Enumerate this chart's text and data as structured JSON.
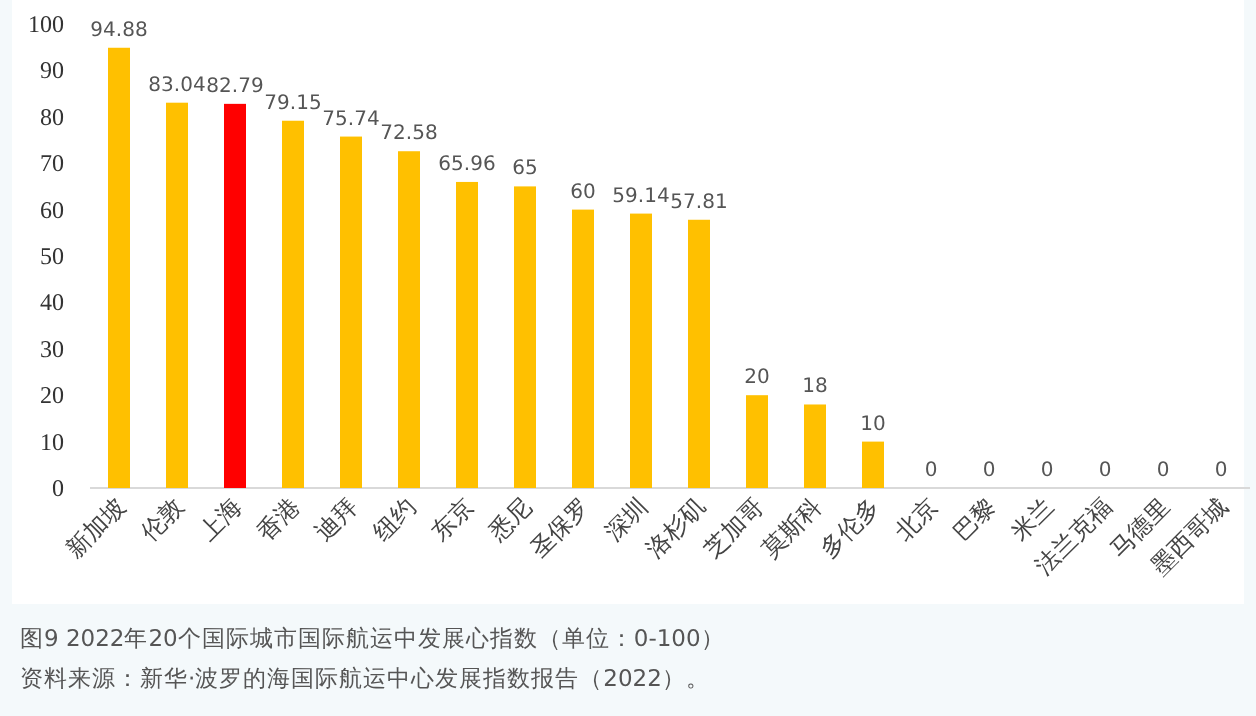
{
  "chart_data": {
    "type": "bar",
    "title": "图9  2022年20个国际城市国际航运中发展心指数（单位：0-100）",
    "annotations": [
      "资料来源：新华·波罗的海国际航运中心发展指数报告（2022）。"
    ],
    "categories": [
      "新加坡",
      "伦敦",
      "上海",
      "香港",
      "迪拜",
      "纽约",
      "东京",
      "悉尼",
      "圣保罗",
      "深圳",
      "洛杉矶",
      "芝加哥",
      "莫斯科",
      "多伦多",
      "北京",
      "巴黎",
      "米兰",
      "法兰克福",
      "马德里",
      "墨西哥城"
    ],
    "values": [
      94.88,
      83.04,
      82.79,
      79.15,
      75.74,
      72.58,
      65.96,
      65,
      60,
      59.14,
      57.81,
      20,
      18,
      10,
      0,
      0,
      0,
      0,
      0,
      0
    ],
    "colors": [
      "#ffc000",
      "#ffc000",
      "#ff0000",
      "#ffc000",
      "#ffc000",
      "#ffc000",
      "#ffc000",
      "#ffc000",
      "#ffc000",
      "#ffc000",
      "#ffc000",
      "#ffc000",
      "#ffc000",
      "#ffc000",
      "#ffc000",
      "#ffc000",
      "#ffc000",
      "#ffc000",
      "#ffc000",
      "#ffc000"
    ],
    "ylim": [
      0,
      100
    ],
    "yticks": [
      0,
      10,
      20,
      30,
      40,
      50,
      60,
      70,
      80,
      90,
      100
    ],
    "data_labels": true
  }
}
